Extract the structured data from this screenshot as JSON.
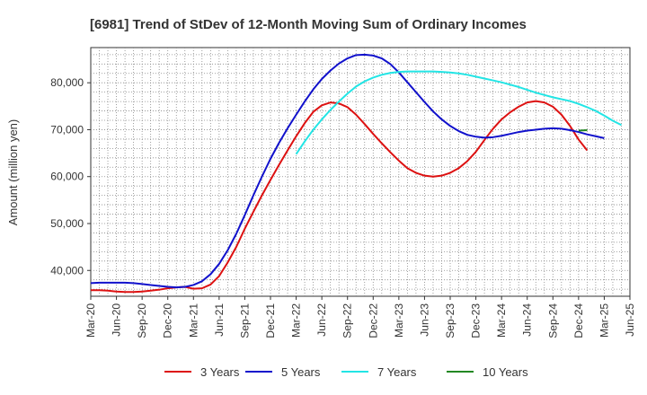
{
  "chart_data": {
    "type": "line",
    "title": "[6981]  Trend of StDev of 12-Month Moving Sum of Ordinary Incomes",
    "xlabel": "",
    "ylabel": "Amount (million yen)",
    "x_tick_labels": [
      "Mar-20",
      "Jun-20",
      "Sep-20",
      "Dec-20",
      "Mar-21",
      "Jun-21",
      "Sep-21",
      "Dec-21",
      "Mar-22",
      "Jun-22",
      "Sep-22",
      "Dec-22",
      "Mar-23",
      "Jun-23",
      "Sep-23",
      "Dec-23",
      "Mar-24",
      "Jun-24",
      "Sep-24",
      "Dec-24",
      "Mar-25",
      "Jun-25"
    ],
    "y_ticks": [
      40000,
      50000,
      60000,
      70000,
      80000
    ],
    "y_tick_labels": [
      "40,000",
      "50,000",
      "60,000",
      "70,000",
      "80,000"
    ],
    "ylim": [
      34500,
      87500
    ],
    "grid": true,
    "legend_position": "bottom",
    "series": [
      {
        "name": "3 Years",
        "color": "#dd1111",
        "start": "Mar-20",
        "values": [
          35800,
          35800,
          35700,
          35500,
          35400,
          35400,
          35500,
          35700,
          35900,
          36200,
          36400,
          36500,
          36100,
          36200,
          37000,
          38800,
          41700,
          45000,
          48900,
          52500,
          56000,
          59300,
          62500,
          65600,
          68600,
          71400,
          73800,
          75200,
          75800,
          75600,
          74800,
          73200,
          71200,
          69100,
          67100,
          65200,
          63400,
          61800,
          60800,
          60200,
          60000,
          60200,
          60800,
          61800,
          63300,
          65300,
          67800,
          70200,
          72200,
          73700,
          74900,
          75800,
          76100,
          75800,
          74900,
          73200,
          70800,
          67900,
          65600
        ]
      },
      {
        "name": "5 Years",
        "color": "#1111cc",
        "start": "Mar-20",
        "values": [
          37300,
          37400,
          37400,
          37400,
          37400,
          37300,
          37100,
          36900,
          36700,
          36500,
          36400,
          36500,
          36900,
          37700,
          39200,
          41400,
          44300,
          47800,
          51800,
          56000,
          60000,
          63800,
          67200,
          70300,
          73200,
          76000,
          78600,
          80800,
          82600,
          84100,
          85200,
          85900,
          86000,
          85800,
          85200,
          84000,
          82200,
          80100,
          78000,
          75900,
          73900,
          72200,
          70800,
          69700,
          68900,
          68500,
          68300,
          68400,
          68700,
          69100,
          69500,
          69800,
          70000,
          70200,
          70300,
          70200,
          69900,
          69500,
          69000,
          68600,
          68200
        ]
      },
      {
        "name": "7 Years",
        "color": "#22e5e5",
        "start": "Mar-22",
        "values": [
          64800,
          67500,
          70000,
          72200,
          74200,
          76000,
          77700,
          79200,
          80300,
          81100,
          81700,
          82100,
          82300,
          82400,
          82400,
          82400,
          82400,
          82300,
          82200,
          82000,
          81700,
          81300,
          80900,
          80500,
          80100,
          79600,
          79100,
          78500,
          77900,
          77400,
          76900,
          76500,
          76100,
          75500,
          74800,
          74000,
          73000,
          71900,
          71000
        ]
      },
      {
        "name": "10 Years",
        "color": "#228822",
        "start": "Dec-24",
        "values": [
          69800,
          69900
        ]
      }
    ]
  }
}
